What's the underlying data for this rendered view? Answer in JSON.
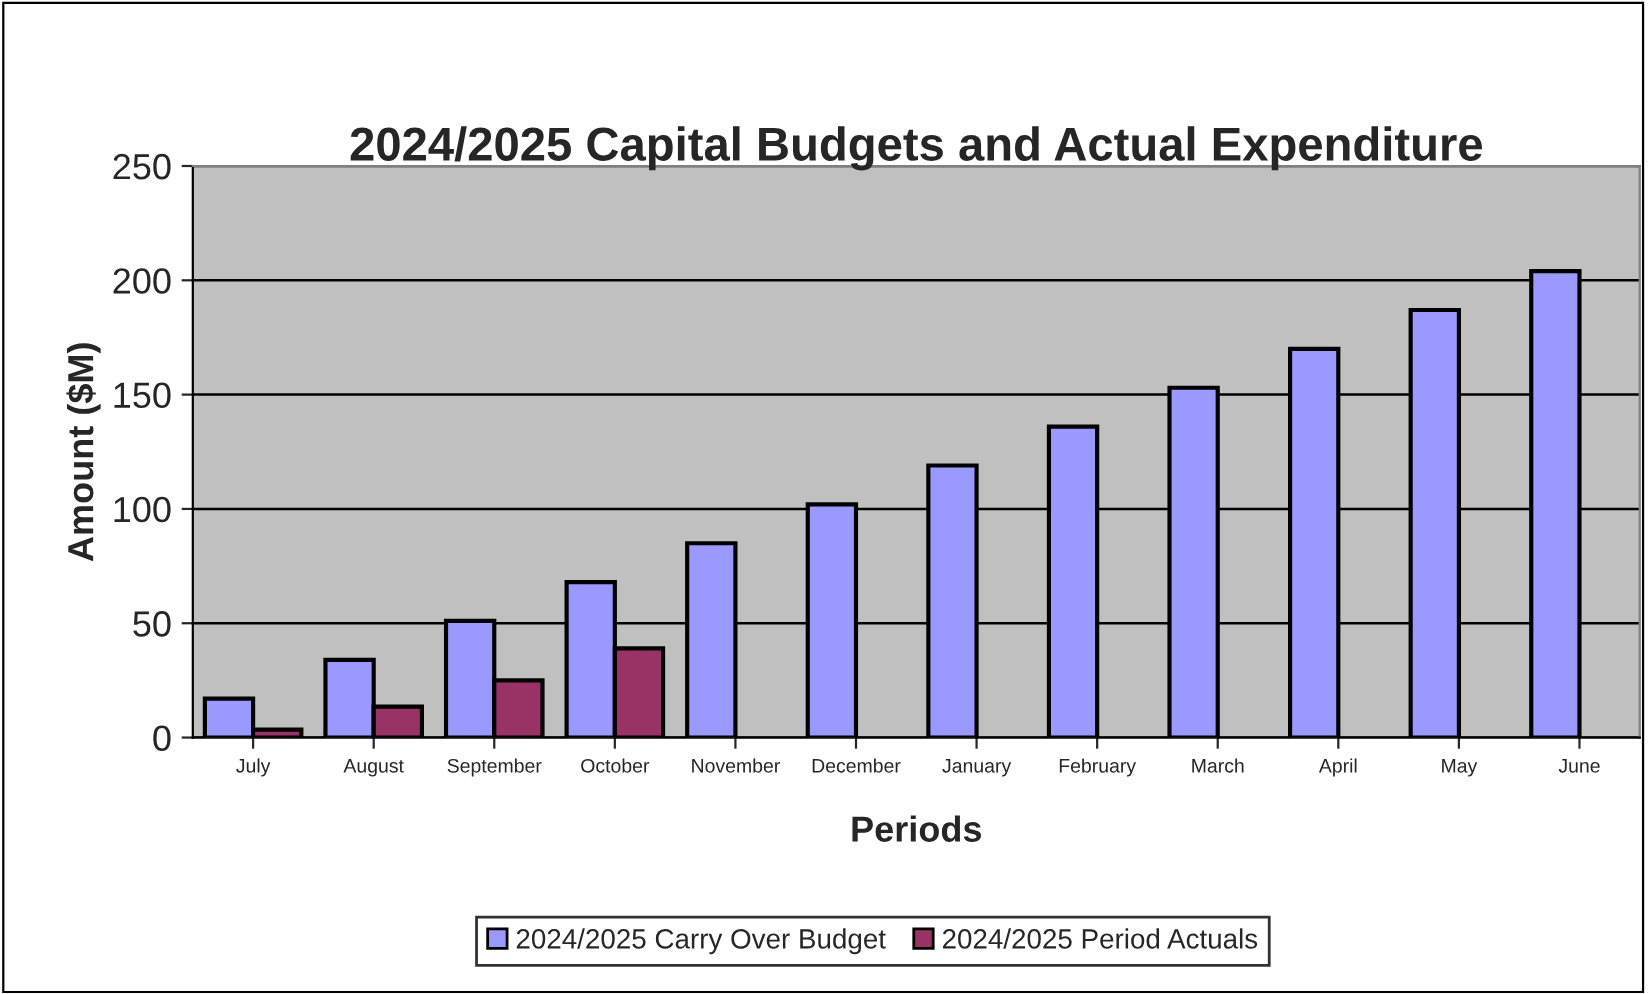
{
  "chart_data": {
    "type": "bar",
    "title": "2024/2025 Capital Budgets and Actual Expenditure",
    "xlabel": "Periods",
    "ylabel": "Amount ($M)",
    "categories": [
      "July",
      "August",
      "September",
      "October",
      "November",
      "December",
      "January",
      "February",
      "March",
      "April",
      "May",
      "June"
    ],
    "series": [
      {
        "name": "2024/2025 Carry Over Budget",
        "color": "#9999ff",
        "values": [
          17,
          34,
          51,
          68,
          85,
          102,
          119,
          136,
          153,
          170,
          187,
          204
        ]
      },
      {
        "name": "2024/2025 Period Actuals",
        "color": "#993366",
        "values": [
          3.5,
          13.5,
          25,
          39,
          null,
          null,
          null,
          null,
          null,
          null,
          null,
          null
        ]
      }
    ],
    "ylim": [
      0,
      250
    ],
    "yticks": [
      0,
      50,
      100,
      150,
      200,
      250
    ],
    "grid": "y",
    "legend": "bottom"
  }
}
